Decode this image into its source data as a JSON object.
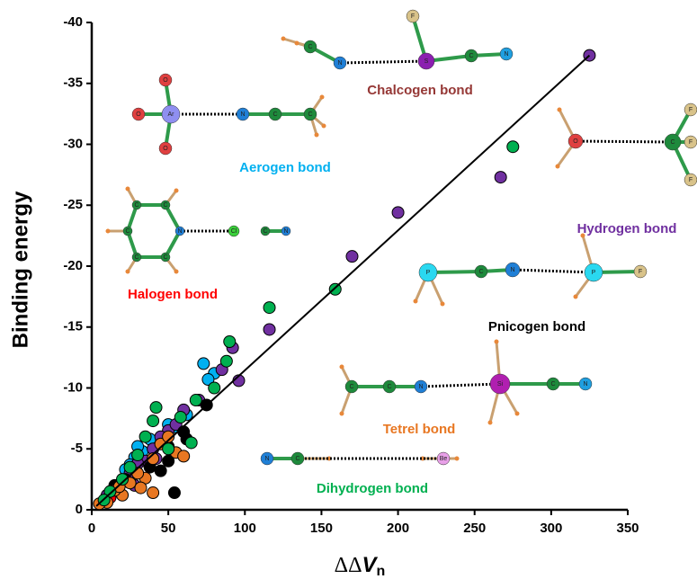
{
  "chart_data": {
    "type": "scatter",
    "ylabel": "Binding energy",
    "xlabel": {
      "main": "ΔΔ",
      "symbol": "V",
      "subscript": "n"
    },
    "xlim": [
      0,
      350
    ],
    "xticks": [
      0,
      50,
      100,
      150,
      200,
      250,
      300,
      350
    ],
    "ylim": [
      0,
      -40
    ],
    "yticks": [
      0,
      -5,
      -10,
      -15,
      -20,
      -25,
      -30,
      -35,
      -40
    ],
    "fit_line": {
      "x": [
        3,
        325
      ],
      "y": [
        -0.3,
        -37.3
      ],
      "color": "#000000"
    },
    "series": [
      {
        "name": "Chalcogen bond",
        "color": "#953735",
        "x": [],
        "values": []
      },
      {
        "name": "Aerogen bond",
        "color": "#00b0f0",
        "x": [
          73,
          80,
          76,
          62,
          55,
          50,
          45,
          38,
          33,
          28,
          25,
          22,
          30
        ],
        "values": [
          -12,
          -11.2,
          -10.7,
          -7.8,
          -6.8,
          -7,
          -5.5,
          -5.8,
          -4.8,
          -4.3,
          -3.7,
          -3.3,
          -5.2
        ]
      },
      {
        "name": "Hydrogen bond",
        "color": "#7030a0",
        "x": [
          325,
          267,
          200,
          170,
          116,
          96,
          92,
          85,
          70,
          60,
          50,
          45,
          40,
          35,
          30,
          25,
          20,
          15,
          10,
          55,
          42,
          28
        ],
        "values": [
          -37.3,
          -27.3,
          -24.4,
          -20.8,
          -14.8,
          -10.6,
          -13.3,
          -11.5,
          -9,
          -8.2,
          -6.5,
          -6,
          -5,
          -4,
          -3.8,
          -3,
          -2.4,
          -1.8,
          -1.2,
          -7,
          -4.2,
          -2
        ]
      },
      {
        "name": "Halogen bond",
        "color": "#ff0000",
        "x": [
          14,
          18,
          12
        ],
        "values": [
          -1.5,
          -2,
          -1
        ]
      },
      {
        "name": "Pnicogen bond",
        "color": "#000000",
        "x": [
          54,
          75,
          62,
          50,
          45,
          38,
          30,
          22,
          15,
          50,
          60
        ],
        "values": [
          -1.4,
          -8.6,
          -5.8,
          -4,
          -3.2,
          -3.5,
          -3,
          -2.5,
          -2,
          -5.2,
          -6.4
        ]
      },
      {
        "name": "Tetrel bond",
        "color": "#e87722",
        "x": [
          40,
          20,
          15,
          10,
          5,
          25,
          35,
          45,
          55,
          60,
          30,
          50,
          40,
          32,
          18
        ],
        "values": [
          -1.4,
          -1.2,
          -1.6,
          -0.6,
          -0.5,
          -2.2,
          -2.6,
          -5.4,
          -4.7,
          -4.4,
          -3,
          -6,
          -4.2,
          -1.8,
          -1.9
        ]
      },
      {
        "name": "Dihydrogen bond",
        "color": "#00b050",
        "x": [
          275,
          159,
          116,
          90,
          88,
          80,
          68,
          58,
          42,
          40,
          35,
          30,
          25,
          20,
          12,
          8,
          50,
          65
        ],
        "values": [
          -29.8,
          -18.1,
          -16.6,
          -13.8,
          -12.2,
          -10,
          -9,
          -7.6,
          -8.4,
          -7.3,
          -6,
          -4.5,
          -3.5,
          -2.5,
          -1.5,
          -0.8,
          -5,
          -5.5
        ]
      }
    ]
  },
  "molecules": [
    {
      "atoms": [
        "C",
        "N",
        "S",
        "F",
        "C",
        "N"
      ]
    },
    {
      "atoms": [
        "O",
        "Ar",
        "O",
        "O",
        "N",
        "C",
        "C"
      ]
    },
    {
      "atoms": [
        "O",
        "C",
        "F",
        "F",
        "F"
      ]
    },
    {
      "atoms": [
        "C",
        "C",
        "C",
        "C",
        "C",
        "N",
        "Cl",
        "C",
        "N"
      ]
    },
    {
      "atoms": [
        "P",
        "C",
        "N",
        "P",
        "F"
      ]
    },
    {
      "atoms": [
        "C",
        "C",
        "N",
        "Si",
        "C",
        "N"
      ]
    },
    {
      "atoms": [
        "N",
        "C",
        "Be"
      ]
    }
  ]
}
